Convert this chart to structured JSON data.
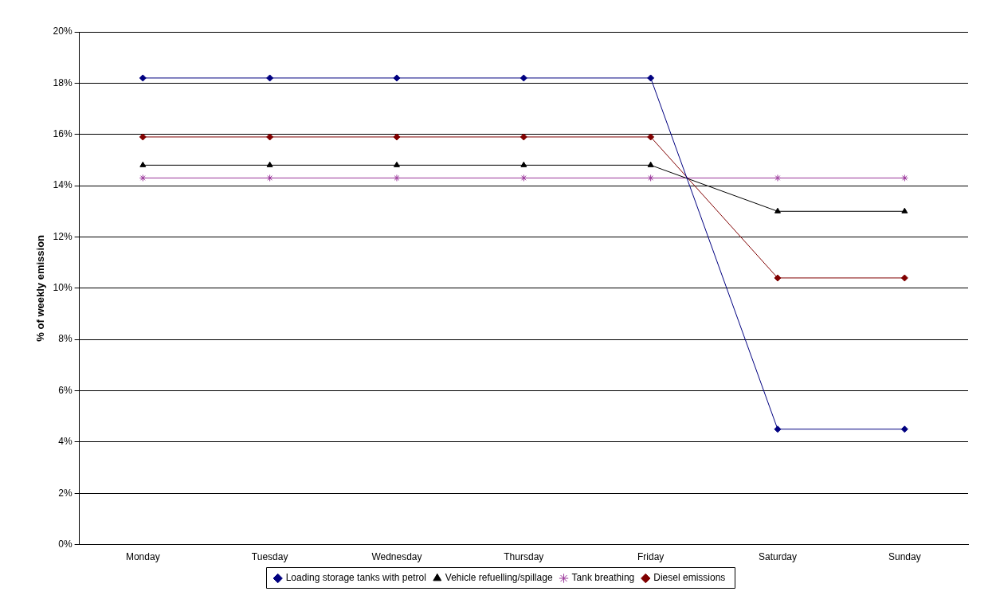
{
  "chart_data": {
    "type": "line",
    "ylabel": "% of weekly emission",
    "categories": [
      "Monday",
      "Tuesday",
      "Wednesday",
      "Thursday",
      "Friday",
      "Saturday",
      "Sunday"
    ],
    "series": [
      {
        "name": "Loading storage tanks with petrol",
        "color": "#000080",
        "marker": "diamond",
        "values": [
          18.2,
          18.2,
          18.2,
          18.2,
          18.2,
          4.5,
          4.5
        ]
      },
      {
        "name": "Vehicle refuelling/spillage",
        "color": "#000000",
        "marker": "triangle",
        "values": [
          14.8,
          14.8,
          14.8,
          14.8,
          14.8,
          13.0,
          13.0
        ]
      },
      {
        "name": "Tank breathing",
        "color": "#993399",
        "marker": "cross",
        "values": [
          14.3,
          14.3,
          14.3,
          14.3,
          14.3,
          14.3,
          14.3
        ]
      },
      {
        "name": "Diesel emissions",
        "color": "#800000",
        "marker": "diamond",
        "values": [
          15.9,
          15.9,
          15.9,
          15.9,
          15.9,
          10.4,
          10.4
        ]
      }
    ],
    "ylim": [
      0,
      20
    ],
    "yticks": [
      {
        "value": 0,
        "label": "0%"
      },
      {
        "value": 2,
        "label": "2%"
      },
      {
        "value": 4,
        "label": "4%"
      },
      {
        "value": 6,
        "label": "6%"
      },
      {
        "value": 8,
        "label": "8%"
      },
      {
        "value": 10,
        "label": "10%"
      },
      {
        "value": 12,
        "label": "12%"
      },
      {
        "value": 14,
        "label": "14%"
      },
      {
        "value": 16,
        "label": "16%"
      },
      {
        "value": 18,
        "label": "18%"
      },
      {
        "value": 20,
        "label": "20%"
      }
    ],
    "grid": "y",
    "legend": "bottom"
  }
}
